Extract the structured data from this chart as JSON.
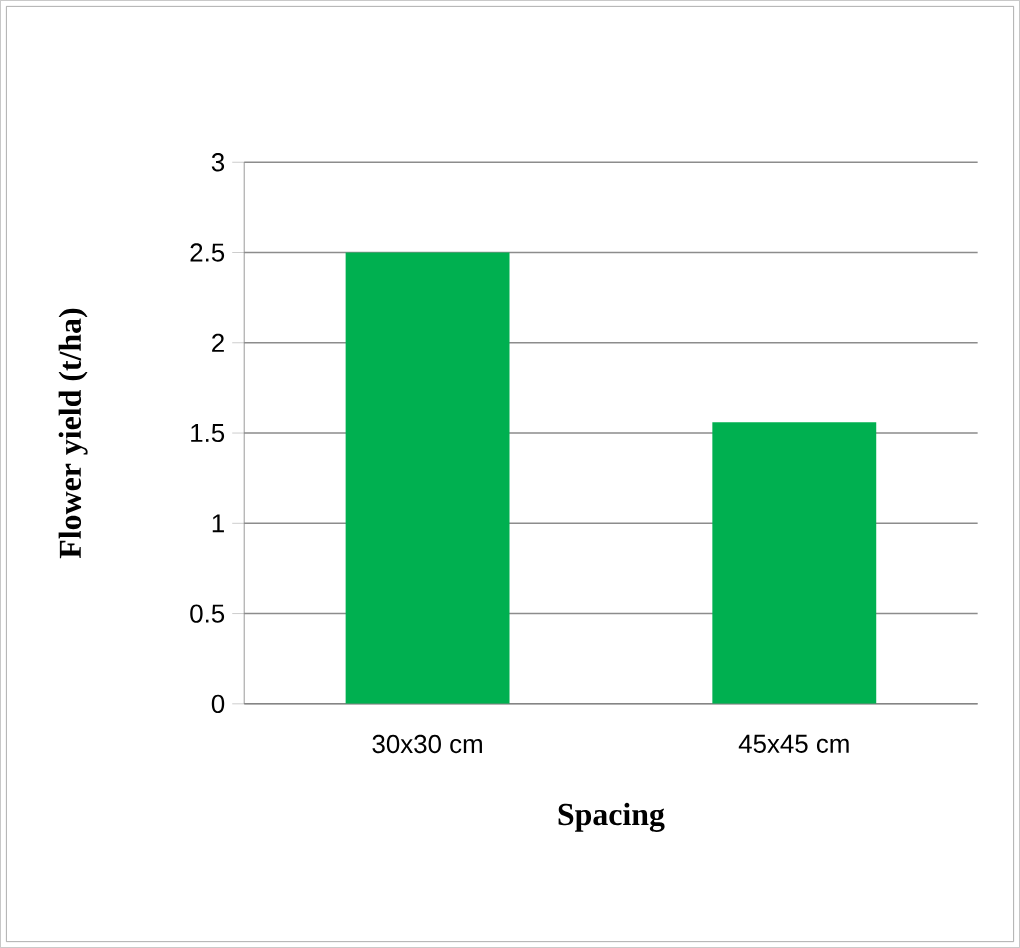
{
  "chart_data": {
    "type": "bar",
    "categories": [
      "30x30 cm",
      "45x45 cm"
    ],
    "values": [
      2.5,
      1.56
    ],
    "color": "#00b050",
    "xlabel": "Spacing",
    "ylabel": "Flower yield  (t/ha)",
    "ylim": [
      0,
      3
    ],
    "yticks": [
      0,
      0.5,
      1,
      1.5,
      2,
      2.5,
      3
    ],
    "grid": "y"
  }
}
